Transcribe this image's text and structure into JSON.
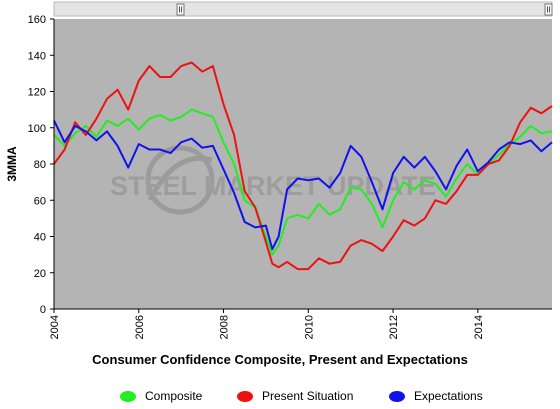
{
  "chart_data": {
    "type": "line",
    "title": "Consumer Confidence Composite, Present and Expectations",
    "ylabel": "3MMA",
    "xlabel": "",
    "ylim": [
      0,
      160
    ],
    "xlim": [
      2004.0,
      2015.75
    ],
    "y_ticks": [
      "0",
      "20",
      "40",
      "60",
      "80",
      "100",
      "120",
      "140",
      "160"
    ],
    "x_ticks": [
      "2004",
      "2006",
      "2008",
      "2010",
      "2012",
      "2014"
    ],
    "grid": false,
    "watermark": "STEEL MARKET UPDATE",
    "series": [
      {
        "name": "Composite",
        "color": "#22ee22",
        "points": [
          [
            2004.0,
            96
          ],
          [
            2004.25,
            90
          ],
          [
            2004.5,
            97
          ],
          [
            2004.75,
            101
          ],
          [
            2005.0,
            95
          ],
          [
            2005.25,
            104
          ],
          [
            2005.5,
            101
          ],
          [
            2005.75,
            105
          ],
          [
            2006.0,
            99
          ],
          [
            2006.25,
            105
          ],
          [
            2006.5,
            107
          ],
          [
            2006.75,
            104
          ],
          [
            2007.0,
            106
          ],
          [
            2007.25,
            110
          ],
          [
            2007.5,
            108
          ],
          [
            2007.75,
            106
          ],
          [
            2008.0,
            92
          ],
          [
            2008.25,
            80
          ],
          [
            2008.5,
            60
          ],
          [
            2008.75,
            56
          ],
          [
            2009.0,
            40
          ],
          [
            2009.15,
            30
          ],
          [
            2009.3,
            35
          ],
          [
            2009.5,
            50
          ],
          [
            2009.75,
            52
          ],
          [
            2010.0,
            50
          ],
          [
            2010.25,
            58
          ],
          [
            2010.5,
            52
          ],
          [
            2010.75,
            55
          ],
          [
            2011.0,
            67
          ],
          [
            2011.25,
            66
          ],
          [
            2011.5,
            58
          ],
          [
            2011.75,
            45
          ],
          [
            2012.0,
            60
          ],
          [
            2012.25,
            70
          ],
          [
            2012.5,
            66
          ],
          [
            2012.75,
            71
          ],
          [
            2013.0,
            69
          ],
          [
            2013.25,
            62
          ],
          [
            2013.5,
            72
          ],
          [
            2013.75,
            80
          ],
          [
            2014.0,
            74
          ],
          [
            2014.25,
            80
          ],
          [
            2014.5,
            85
          ],
          [
            2014.75,
            91
          ],
          [
            2015.0,
            95
          ],
          [
            2015.25,
            101
          ],
          [
            2015.5,
            97
          ],
          [
            2015.75,
            98
          ]
        ]
      },
      {
        "name": "Present Situation",
        "color": "#ee1111",
        "points": [
          [
            2004.0,
            80
          ],
          [
            2004.25,
            88
          ],
          [
            2004.5,
            103
          ],
          [
            2004.75,
            96
          ],
          [
            2005.0,
            105
          ],
          [
            2005.25,
            116
          ],
          [
            2005.5,
            121
          ],
          [
            2005.75,
            110
          ],
          [
            2006.0,
            126
          ],
          [
            2006.25,
            134
          ],
          [
            2006.5,
            128
          ],
          [
            2006.75,
            128
          ],
          [
            2007.0,
            134
          ],
          [
            2007.25,
            136
          ],
          [
            2007.5,
            131
          ],
          [
            2007.75,
            134
          ],
          [
            2008.0,
            113
          ],
          [
            2008.25,
            96
          ],
          [
            2008.5,
            65
          ],
          [
            2008.75,
            56
          ],
          [
            2009.0,
            37
          ],
          [
            2009.15,
            25
          ],
          [
            2009.3,
            23
          ],
          [
            2009.5,
            26
          ],
          [
            2009.75,
            22
          ],
          [
            2010.0,
            22
          ],
          [
            2010.25,
            28
          ],
          [
            2010.5,
            25
          ],
          [
            2010.75,
            26
          ],
          [
            2011.0,
            35
          ],
          [
            2011.25,
            38
          ],
          [
            2011.5,
            36
          ],
          [
            2011.75,
            32
          ],
          [
            2012.0,
            40
          ],
          [
            2012.25,
            49
          ],
          [
            2012.5,
            46
          ],
          [
            2012.75,
            50
          ],
          [
            2013.0,
            60
          ],
          [
            2013.25,
            58
          ],
          [
            2013.5,
            65
          ],
          [
            2013.75,
            74
          ],
          [
            2014.0,
            74
          ],
          [
            2014.25,
            80
          ],
          [
            2014.5,
            82
          ],
          [
            2014.75,
            90
          ],
          [
            2015.0,
            103
          ],
          [
            2015.25,
            111
          ],
          [
            2015.5,
            108
          ],
          [
            2015.75,
            112
          ]
        ]
      },
      {
        "name": "Expectations",
        "color": "#1111ee",
        "points": [
          [
            2004.0,
            104
          ],
          [
            2004.25,
            92
          ],
          [
            2004.5,
            101
          ],
          [
            2004.75,
            98
          ],
          [
            2005.0,
            93
          ],
          [
            2005.25,
            98
          ],
          [
            2005.5,
            90
          ],
          [
            2005.75,
            78
          ],
          [
            2006.0,
            91
          ],
          [
            2006.25,
            88
          ],
          [
            2006.5,
            88
          ],
          [
            2006.75,
            86
          ],
          [
            2007.0,
            92
          ],
          [
            2007.25,
            94
          ],
          [
            2007.5,
            89
          ],
          [
            2007.75,
            90
          ],
          [
            2008.0,
            77
          ],
          [
            2008.25,
            64
          ],
          [
            2008.5,
            48
          ],
          [
            2008.75,
            45
          ],
          [
            2009.0,
            46
          ],
          [
            2009.15,
            33
          ],
          [
            2009.3,
            40
          ],
          [
            2009.5,
            66
          ],
          [
            2009.75,
            72
          ],
          [
            2010.0,
            71
          ],
          [
            2010.25,
            72
          ],
          [
            2010.5,
            67
          ],
          [
            2010.75,
            75
          ],
          [
            2011.0,
            90
          ],
          [
            2011.25,
            84
          ],
          [
            2011.5,
            70
          ],
          [
            2011.75,
            55
          ],
          [
            2012.0,
            75
          ],
          [
            2012.25,
            84
          ],
          [
            2012.5,
            78
          ],
          [
            2012.75,
            84
          ],
          [
            2013.0,
            76
          ],
          [
            2013.25,
            66
          ],
          [
            2013.5,
            79
          ],
          [
            2013.75,
            88
          ],
          [
            2014.0,
            76
          ],
          [
            2014.25,
            81
          ],
          [
            2014.5,
            88
          ],
          [
            2014.75,
            92
          ],
          [
            2015.0,
            91
          ],
          [
            2015.25,
            93
          ],
          [
            2015.5,
            87
          ],
          [
            2015.75,
            92
          ]
        ]
      }
    ]
  },
  "page": {
    "title": "Consumer Confidence Composite, Present and Expectations",
    "legend": [
      "Composite",
      "Present Situation",
      "Expectations"
    ],
    "legend_colors": [
      "#22ee22",
      "#ee1111",
      "#1111ee"
    ]
  }
}
